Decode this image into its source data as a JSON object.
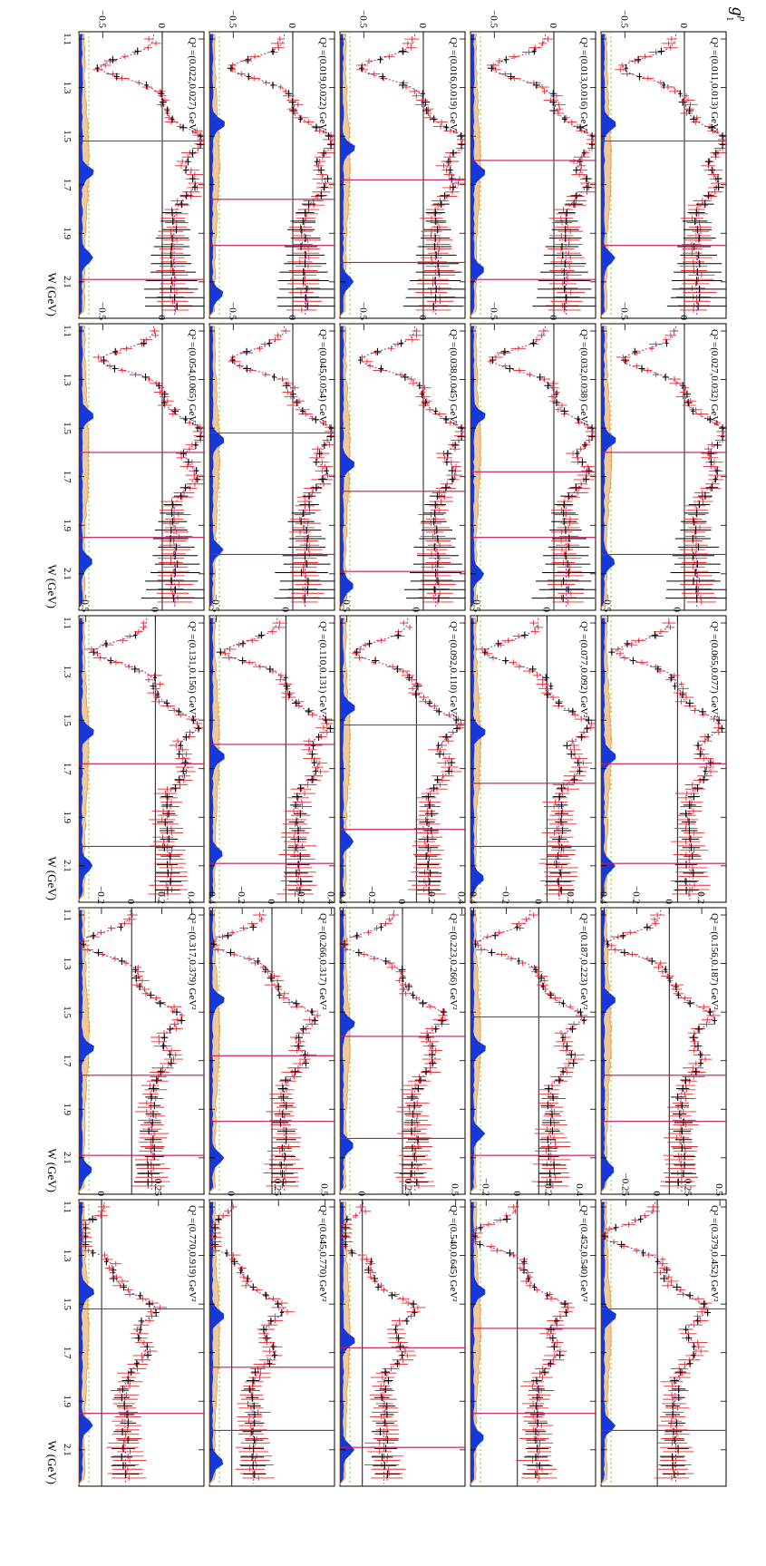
{
  "figure": {
    "ylabel": "g_1^p",
    "ylabel_main": "g",
    "ylabel_sub": "1",
    "ylabel_sup": "p",
    "xlabel": "W (GeV)",
    "x_ticks": [
      "1.1",
      "1.3",
      "1.5",
      "1.7",
      "1.9",
      "2.1"
    ],
    "colors": {
      "frame": "#000000",
      "model_curve": "#8e2fb8",
      "data_set_red": "#e8262a",
      "data_set_black": "#000000",
      "band_fill_orange": "#e39a45",
      "band_fill_blue": "#1638d8",
      "dotted_reference": "#7cc521",
      "resonance_line": "#c2185b"
    }
  },
  "chart_data": {
    "type": "scatter",
    "layout": "5 columns x 5 rows of panels, rotated 90 degrees",
    "x_axis": {
      "label": "W (GeV)",
      "range": [
        1.07,
        2.25
      ],
      "ticks": [
        1.1,
        1.3,
        1.5,
        1.7,
        1.9,
        2.1
      ]
    },
    "y_axis": {
      "label": "g_1^p"
    },
    "series": [
      {
        "name": "data (red crosses)",
        "color": "#e8262a"
      },
      {
        "name": "data (black crosses)",
        "color": "#000000"
      },
      {
        "name": "model (dotted)",
        "color": "#8e2fb8"
      }
    ],
    "panels": [
      {
        "q2_label": "Q² =(0.011,0.013) GeV²",
        "q2_min": 0.011,
        "q2_max": 0.013,
        "ylim": [
          -0.7,
          0.35
        ],
        "yticks": [
          "0",
          "−0.5"
        ]
      },
      {
        "q2_label": "Q² =(0.027,0.032) GeV²",
        "q2_min": 0.027,
        "q2_max": 0.032,
        "ylim": [
          -0.7,
          0.35
        ],
        "yticks": [
          "0",
          "−0.5"
        ]
      },
      {
        "q2_label": "Q² =(0.065,0.077) GeV²",
        "q2_min": 0.065,
        "q2_max": 0.077,
        "ylim": [
          -0.55,
          0.35
        ],
        "yticks": [
          "0",
          "−0.5"
        ]
      },
      {
        "q2_label": "Q² =(0.156,0.187) GeV²",
        "q2_min": 0.156,
        "q2_max": 0.187,
        "ylim": [
          -0.42,
          0.35
        ],
        "yticks": [
          "0.2",
          "0",
          "−0.2",
          "−0.4"
        ]
      },
      {
        "q2_label": "Q² =(0.379,0.452) GeV²",
        "q2_min": 0.379,
        "q2_max": 0.452,
        "ylim": [
          -0.45,
          0.55
        ],
        "yticks": [
          "0.5",
          "0.25",
          "0",
          "−0.25"
        ]
      },
      {
        "q2_label": "Q² =(0.013,0.016) GeV²",
        "q2_min": 0.013,
        "q2_max": 0.016,
        "ylim": [
          -0.7,
          0.35
        ],
        "yticks": [
          "0",
          "−0.5"
        ]
      },
      {
        "q2_label": "Q² =(0.032,0.038) GeV²",
        "q2_min": 0.032,
        "q2_max": 0.038,
        "ylim": [
          -0.7,
          0.35
        ],
        "yticks": [
          "0",
          "−0.5"
        ]
      },
      {
        "q2_label": "Q² =(0.077,0.092) GeV²",
        "q2_min": 0.077,
        "q2_max": 0.092,
        "ylim": [
          -0.55,
          0.35
        ],
        "yticks": [
          "0",
          "−0.5"
        ]
      },
      {
        "q2_label": "Q² =(0.187,0.223) GeV²",
        "q2_min": 0.187,
        "q2_max": 0.223,
        "ylim": [
          -0.42,
          0.35
        ],
        "yticks": [
          "0.2",
          "0",
          "−0.2",
          "−0.4"
        ]
      },
      {
        "q2_label": "Q² =(0.452,0.540) GeV²",
        "q2_min": 0.452,
        "q2_max": 0.54,
        "ylim": [
          -0.3,
          0.5
        ],
        "yticks": [
          "0.4",
          "0.2",
          "0",
          "−0.2"
        ]
      },
      {
        "q2_label": "Q² =(0.016,0.019) GeV²",
        "q2_min": 0.016,
        "q2_max": 0.019,
        "ylim": [
          -0.7,
          0.35
        ],
        "yticks": [
          "0",
          "−0.5"
        ]
      },
      {
        "q2_label": "Q² =(0.038,0.045) GeV²",
        "q2_min": 0.038,
        "q2_max": 0.045,
        "ylim": [
          -0.7,
          0.35
        ],
        "yticks": [
          "0",
          "−0.5"
        ]
      },
      {
        "q2_label": "Q² =(0.092,0.110) GeV²",
        "q2_min": 0.092,
        "q2_max": 0.11,
        "ylim": [
          -0.55,
          0.35
        ],
        "yticks": [
          "0",
          "−0.5"
        ]
      },
      {
        "q2_label": "Q² =(0.223,0.266) GeV²",
        "q2_min": 0.223,
        "q2_max": 0.266,
        "ylim": [
          -0.42,
          0.42
        ],
        "yticks": [
          "0.4",
          "0.2",
          "0",
          "−0.2",
          "−0.4"
        ]
      },
      {
        "q2_label": "Q² =(0.540,0.645) GeV²",
        "q2_min": 0.54,
        "q2_max": 0.645,
        "ylim": [
          -0.12,
          0.55
        ],
        "yticks": [
          "0.5",
          "0.25",
          "0"
        ]
      },
      {
        "q2_label": "Q² =(0.019,0.022) GeV²",
        "q2_min": 0.019,
        "q2_max": 0.022,
        "ylim": [
          -0.7,
          0.35
        ],
        "yticks": [
          "0",
          "−0.5"
        ]
      },
      {
        "q2_label": "Q² =(0.045,0.054) GeV²",
        "q2_min": 0.045,
        "q2_max": 0.054,
        "ylim": [
          -0.7,
          0.35
        ],
        "yticks": [
          "0",
          "−0.5"
        ]
      },
      {
        "q2_label": "Q² =(0.110,0.131) GeV²",
        "q2_min": 0.11,
        "q2_max": 0.131,
        "ylim": [
          -0.55,
          0.35
        ],
        "yticks": [
          "0",
          "−0.5"
        ]
      },
      {
        "q2_label": "Q² =(0.266,0.317) GeV²",
        "q2_min": 0.266,
        "q2_max": 0.317,
        "ylim": [
          -0.42,
          0.42
        ],
        "yticks": [
          "0.4",
          "0.2",
          "0",
          "−0.2",
          "−0.4"
        ]
      },
      {
        "q2_label": "Q² =(0.645,0.770) GeV²",
        "q2_min": 0.645,
        "q2_max": 0.77,
        "ylim": [
          -0.12,
          0.55
        ],
        "yticks": [
          "0.5",
          "0.25",
          "0"
        ]
      },
      {
        "q2_label": "Q² =(0.022,0.027) GeV²",
        "q2_min": 0.022,
        "q2_max": 0.027,
        "ylim": [
          -0.7,
          0.35
        ],
        "yticks": [
          "0",
          "−0.5"
        ]
      },
      {
        "q2_label": "Q² =(0.054,0.065) GeV²",
        "q2_min": 0.054,
        "q2_max": 0.065,
        "ylim": [
          -0.7,
          0.35
        ],
        "yticks": [
          "0",
          "−0.5"
        ]
      },
      {
        "q2_label": "Q² =(0.131,0.156) GeV²",
        "q2_min": 0.131,
        "q2_max": 0.156,
        "ylim": [
          -0.55,
          0.35
        ],
        "yticks": [
          "0",
          "−0.5"
        ]
      },
      {
        "q2_label": "Q² =(0.317,0.379) GeV²",
        "q2_min": 0.317,
        "q2_max": 0.379,
        "ylim": [
          -0.35,
          0.48
        ],
        "yticks": [
          "0.4",
          "0.2",
          "0",
          "−0.2"
        ]
      },
      {
        "q2_label": "Q² =(0.770,0.919) GeV²",
        "q2_min": 0.77,
        "q2_max": 0.919,
        "ylim": [
          -0.1,
          0.45
        ],
        "yticks": [
          "0.25",
          "0"
        ]
      }
    ]
  }
}
